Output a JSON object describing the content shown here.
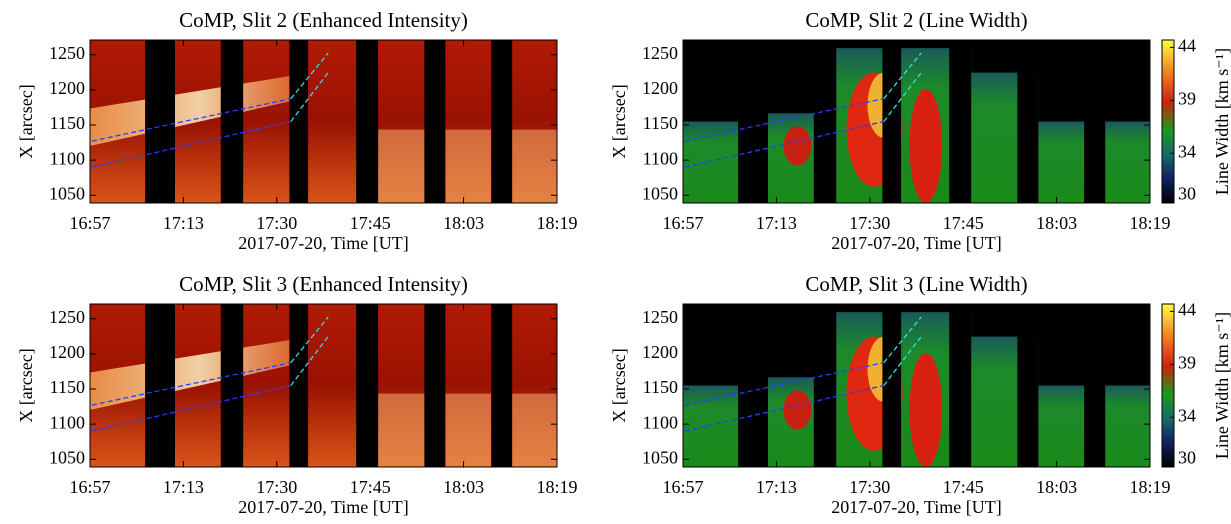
{
  "chart_data": [
    {
      "type": "heatmap",
      "kind": "intensity",
      "title": "CoMP, Slit 2 (Enhanced Intensity)",
      "x_label": "2017-07-20, Time [UT]",
      "y_label": "X [arcsec]",
      "x_tick_labels": [
        "16:57",
        "17:13",
        "17:30",
        "17:45",
        "18:03",
        "18:19"
      ],
      "ylim": [
        1039,
        1271
      ],
      "yticks": [
        1050,
        1100,
        1150,
        1200,
        1250
      ]
    },
    {
      "type": "heatmap",
      "kind": "linewidth",
      "title": "CoMP, Slit 2 (Line Width)",
      "x_label": "2017-07-20, Time [UT]",
      "y_label": "X [arcsec]",
      "x_tick_labels": [
        "16:57",
        "17:13",
        "17:30",
        "17:45",
        "18:03",
        "18:19"
      ],
      "ylim": [
        1039,
        1271
      ],
      "yticks": [
        1050,
        1100,
        1150,
        1200,
        1250
      ],
      "colorbar": {
        "label": "Line Width [km s⁻¹]",
        "lim": [
          29.3,
          44.7
        ],
        "ticks": [
          30,
          34,
          39,
          44
        ]
      }
    },
    {
      "type": "heatmap",
      "kind": "intensity",
      "title": "CoMP, Slit 3 (Enhanced Intensity)",
      "x_label": "2017-07-20, Time [UT]",
      "y_label": "X [arcsec]",
      "x_tick_labels": [
        "16:57",
        "17:13",
        "17:30",
        "17:45",
        "18:03",
        "18:19"
      ],
      "ylim": [
        1039,
        1271
      ],
      "yticks": [
        1050,
        1100,
        1150,
        1200,
        1250
      ]
    },
    {
      "type": "heatmap",
      "kind": "linewidth",
      "title": "CoMP, Slit 3 (Line Width)",
      "x_label": "2017-07-20, Time [UT]",
      "y_label": "X [arcsec]",
      "x_tick_labels": [
        "16:57",
        "17:13",
        "17:30",
        "17:45",
        "18:03",
        "18:19"
      ],
      "ylim": [
        1039,
        1271
      ],
      "yticks": [
        1050,
        1100,
        1150,
        1200,
        1250
      ],
      "colorbar": {
        "label": "Line Width [km s⁻¹]",
        "lim": [
          29.3,
          44.7
        ],
        "ticks": [
          30,
          34,
          39,
          44
        ]
      }
    }
  ]
}
